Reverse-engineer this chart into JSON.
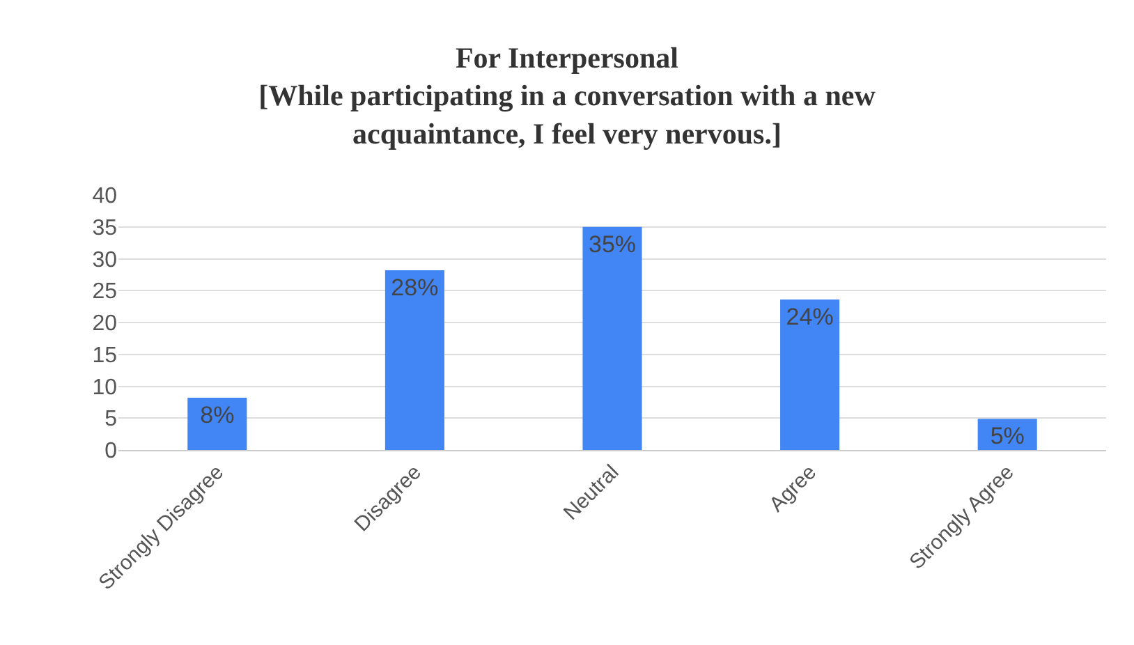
{
  "chart_data": {
    "type": "bar",
    "title": "For Interpersonal\n[While participating in a conversation with a new\nacquaintance, I feel very nervous.]",
    "categories": [
      "Strongly Disagree",
      "Disagree",
      "Neutral",
      "Agree",
      "Strongly Agree"
    ],
    "values": [
      8.2,
      28.2,
      35,
      23.6,
      4.9
    ],
    "value_labels": [
      "8%",
      "28%",
      "35%",
      "24%",
      "5%"
    ],
    "color": "#4285f4",
    "ylim": [
      0,
      40
    ],
    "yticks": [
      0,
      5,
      10,
      15,
      20,
      25,
      30,
      35,
      40
    ],
    "grid": "y"
  }
}
